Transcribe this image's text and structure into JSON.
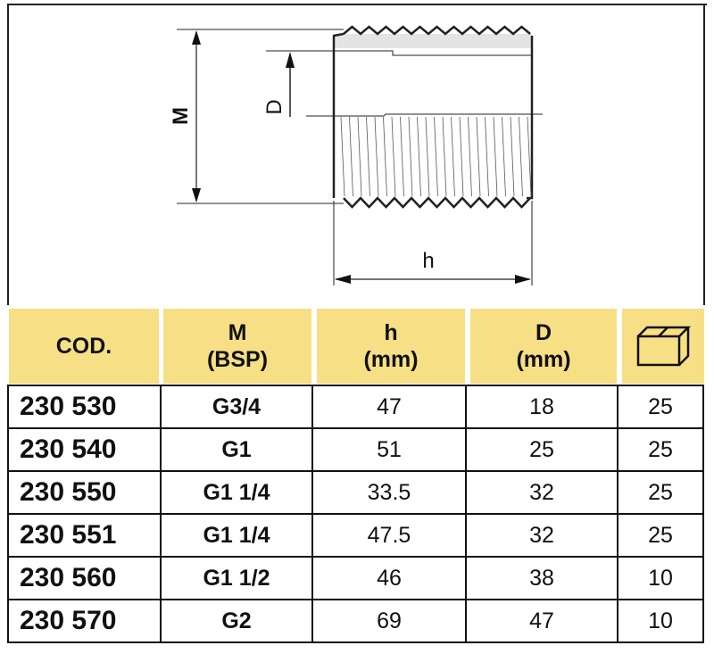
{
  "drawing": {
    "label_m": "M",
    "label_d": "D",
    "label_h": "h"
  },
  "header": {
    "code": "COD.",
    "m_line1": "M",
    "m_line2": "(BSP)",
    "h_line1": "h",
    "h_line2": "(mm)",
    "d_line1": "D",
    "d_line2": "(mm)",
    "package_icon": "box-icon"
  },
  "colors": {
    "header_bg": "#f7df86"
  },
  "rows": [
    {
      "code": "230 530",
      "m": "G3/4",
      "h": "47",
      "d": "18",
      "qty": "25"
    },
    {
      "code": "230 540",
      "m": "G1",
      "h": "51",
      "d": "25",
      "qty": "25"
    },
    {
      "code": "230 550",
      "m": "G1 1/4",
      "h": "33.5",
      "d": "32",
      "qty": "25"
    },
    {
      "code": "230 551",
      "m": "G1 1/4",
      "h": "47.5",
      "d": "32",
      "qty": "25"
    },
    {
      "code": "230 560",
      "m": "G1 1/2",
      "h": "46",
      "d": "38",
      "qty": "10"
    },
    {
      "code": "230 570",
      "m": "G2",
      "h": "69",
      "d": "47",
      "qty": "10"
    }
  ]
}
